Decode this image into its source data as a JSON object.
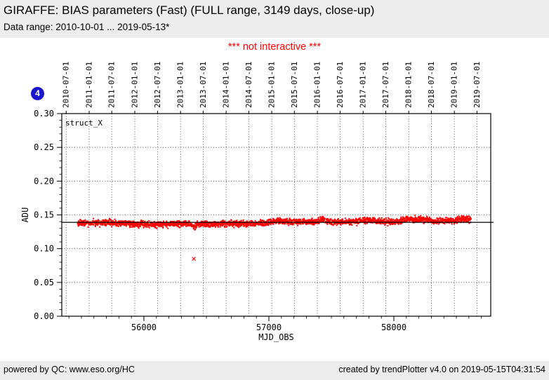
{
  "header": {
    "title": "GIRAFFE: BIAS parameters (Fast) (FULL range, 3149 days, close-up)",
    "subtitle": "Data range: 2010-10-01 ... 2019-05-13*",
    "notice": "*** not interactive ***",
    "notice_color": "#ff0000",
    "background_color": "#ececec"
  },
  "badge": {
    "label": "4",
    "color": "#1a14cc"
  },
  "chart_data": {
    "type": "scatter",
    "plot_label": "struct_X",
    "xlabel": "MJD_OBS",
    "ylabel": "ADU",
    "xlim": [
      55343,
      58775
    ],
    "ylim": [
      0.0,
      0.3
    ],
    "x_ticks": [
      56000,
      57000,
      58000
    ],
    "x_minor_step": 100,
    "y_ticks": [
      {
        "value": 0.0,
        "label": "0.00"
      },
      {
        "value": 0.05,
        "label": "0.05"
      },
      {
        "value": 0.1,
        "label": "0.10"
      },
      {
        "value": 0.15,
        "label": "0.15"
      },
      {
        "value": 0.2,
        "label": "0.20"
      },
      {
        "value": 0.25,
        "label": "0.25"
      },
      {
        "value": 0.3,
        "label": "0.30"
      }
    ],
    "y_minor_step": 0.01,
    "grid": true,
    "top_date_ticks": [
      {
        "label": "2010-07-01",
        "mjd": 55378
      },
      {
        "label": "2011-01-01",
        "mjd": 55562
      },
      {
        "label": "2011-07-01",
        "mjd": 55743
      },
      {
        "label": "2012-01-01",
        "mjd": 55927
      },
      {
        "label": "2012-07-01",
        "mjd": 56109
      },
      {
        "label": "2013-01-01",
        "mjd": 56293
      },
      {
        "label": "2013-07-01",
        "mjd": 56474
      },
      {
        "label": "2014-01-01",
        "mjd": 56658
      },
      {
        "label": "2014-07-01",
        "mjd": 56839
      },
      {
        "label": "2015-01-01",
        "mjd": 57023
      },
      {
        "label": "2015-07-01",
        "mjd": 57204
      },
      {
        "label": "2016-01-01",
        "mjd": 57388
      },
      {
        "label": "2016-07-01",
        "mjd": 57570
      },
      {
        "label": "2017-01-01",
        "mjd": 57754
      },
      {
        "label": "2017-07-01",
        "mjd": 57935
      },
      {
        "label": "2018-01-01",
        "mjd": 58119
      },
      {
        "label": "2018-07-01",
        "mjd": 58300
      },
      {
        "label": "2019-01-01",
        "mjd": 58484
      },
      {
        "label": "2019-07-01",
        "mjd": 58665
      }
    ],
    "mean_line": 0.139,
    "point_color": "#ff0000",
    "series": [
      {
        "name": "struct_X",
        "mjd_range": [
          55470,
          58616
        ],
        "n_points": 2600,
        "jitter_adu": 0.0038,
        "trend": [
          [
            55470,
            0.1375
          ],
          [
            55560,
            0.138
          ],
          [
            55700,
            0.1385
          ],
          [
            55850,
            0.1375
          ],
          [
            55950,
            0.136
          ],
          [
            56150,
            0.1358
          ],
          [
            56300,
            0.1368
          ],
          [
            56385,
            0.1362
          ],
          [
            56395,
            0.133
          ],
          [
            56405,
            0.1315
          ],
          [
            56415,
            0.134
          ],
          [
            56430,
            0.1362
          ],
          [
            56550,
            0.1362
          ],
          [
            56700,
            0.1372
          ],
          [
            56850,
            0.1372
          ],
          [
            56960,
            0.138
          ],
          [
            57030,
            0.1395
          ],
          [
            57070,
            0.1428
          ],
          [
            57110,
            0.1408
          ],
          [
            57180,
            0.1395
          ],
          [
            57300,
            0.1402
          ],
          [
            57405,
            0.1398
          ],
          [
            57420,
            0.144
          ],
          [
            57435,
            0.1452
          ],
          [
            57455,
            0.141
          ],
          [
            57490,
            0.1398
          ],
          [
            57600,
            0.14
          ],
          [
            57700,
            0.1398
          ],
          [
            57745,
            0.142
          ],
          [
            57830,
            0.1425
          ],
          [
            57870,
            0.1402
          ],
          [
            57960,
            0.1396
          ],
          [
            58050,
            0.14
          ],
          [
            58075,
            0.1428
          ],
          [
            58180,
            0.1435
          ],
          [
            58260,
            0.1428
          ],
          [
            58320,
            0.1408
          ],
          [
            58420,
            0.1412
          ],
          [
            58500,
            0.1425
          ],
          [
            58616,
            0.1432
          ]
        ]
      }
    ],
    "outliers": [
      {
        "mjd": 56400,
        "value": 0.085
      }
    ]
  },
  "footer": {
    "left": "powered by QC: www.eso.org/HC",
    "right": "created by trendPlotter v4.0 on 2019-05-15T04:31:54"
  }
}
